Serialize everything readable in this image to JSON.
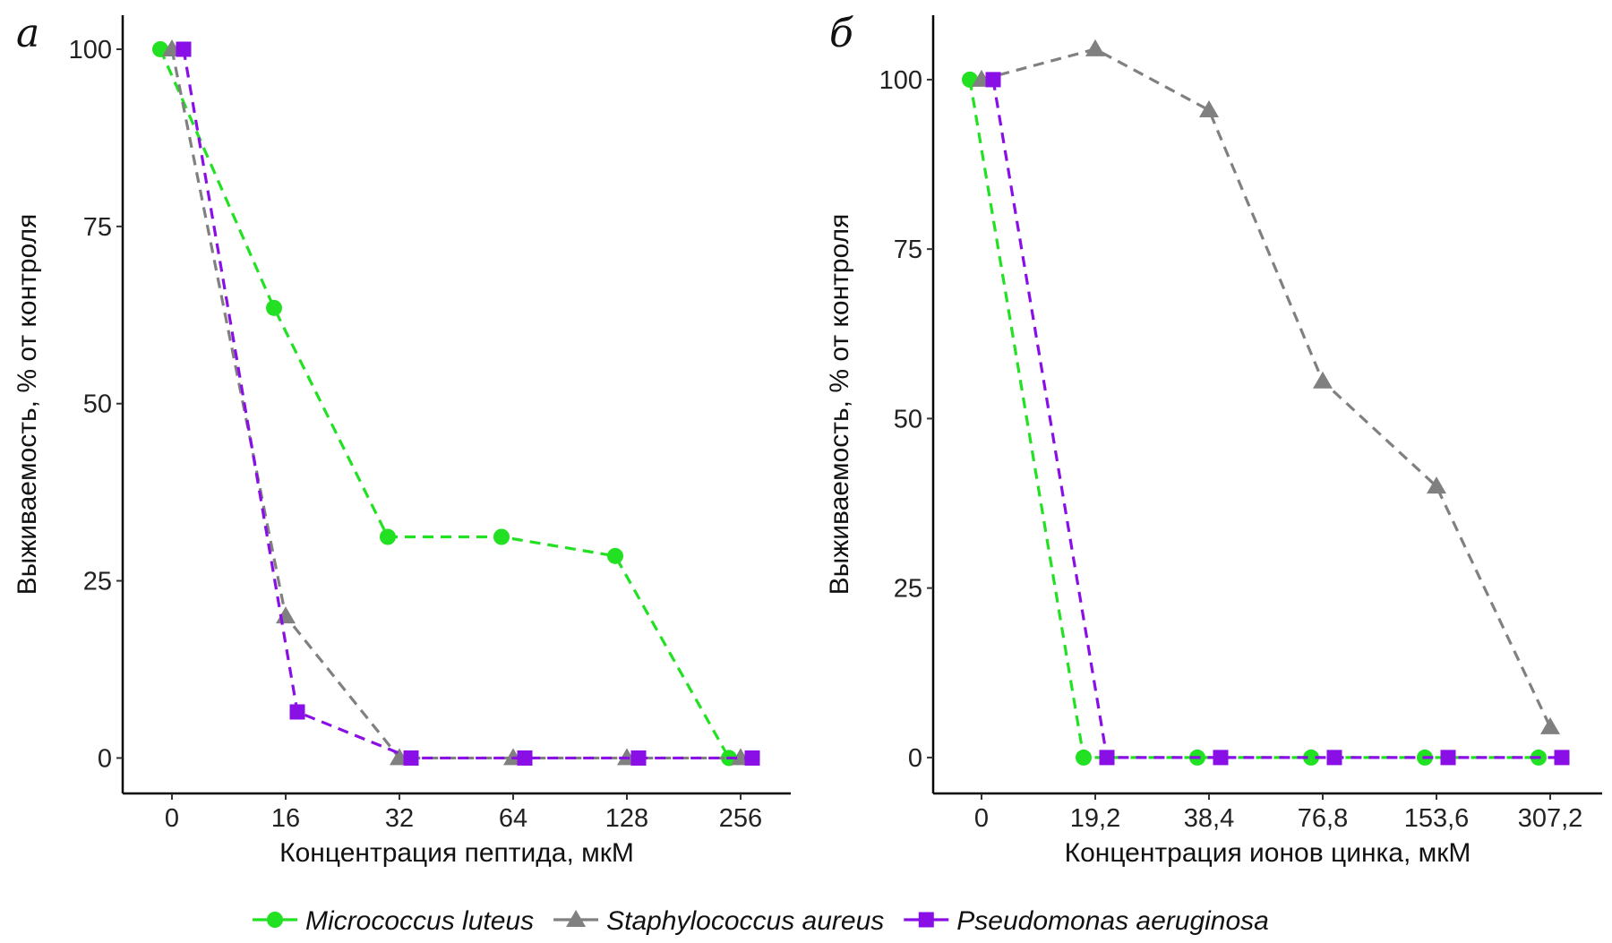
{
  "chart_data": [
    {
      "type": "line",
      "panel_label": "а",
      "xlabel": "Концентрация пептида, мкМ",
      "ylabel": "Выживаемость, % от контроля",
      "categories": [
        "0",
        "16",
        "32",
        "64",
        "128",
        "256"
      ],
      "yticks": [
        0,
        25,
        50,
        75,
        100
      ],
      "ylim": [
        -5,
        104.8
      ],
      "grid": false,
      "series": [
        {
          "name": "Micrococcus luteus",
          "values": [
            100,
            63.5,
            31.2,
            31.2,
            28.5,
            0
          ]
        },
        {
          "name": "Staphylococcus aureus",
          "values": [
            100,
            20,
            0,
            0,
            0,
            0
          ]
        },
        {
          "name": "Pseudomonas aeruginosa",
          "values": [
            100,
            6.5,
            0,
            0,
            0,
            0
          ]
        }
      ]
    },
    {
      "type": "line",
      "panel_label": "б",
      "xlabel": "Концентрация ионов цинка, мкМ",
      "ylabel": "Выживаемость, % от контроля",
      "categories": [
        "0",
        "19,2",
        "38,4",
        "76,8",
        "153,6",
        "307,2"
      ],
      "yticks": [
        0,
        25,
        50,
        75,
        100
      ],
      "ylim": [
        -5.3,
        109.5
      ],
      "grid": false,
      "series": [
        {
          "name": "Micrococcus luteus",
          "values": [
            100,
            0,
            0,
            0,
            0,
            0
          ]
        },
        {
          "name": "Staphylococcus aureus",
          "values": [
            100,
            104.5,
            95.5,
            55.5,
            40,
            4.5
          ]
        },
        {
          "name": "Pseudomonas aeruginosa",
          "values": [
            100,
            0,
            0,
            0,
            0,
            0
          ]
        }
      ]
    }
  ],
  "legend": {
    "placement": "bottom",
    "items": [
      {
        "name": "Micrococcus luteus",
        "color": "#22e022",
        "marker": "circle"
      },
      {
        "name": "Staphylococcus aureus",
        "color": "#808080",
        "marker": "triangle"
      },
      {
        "name": "Pseudomonas aeruginosa",
        "color": "#8a0ee6",
        "marker": "square"
      }
    ]
  }
}
